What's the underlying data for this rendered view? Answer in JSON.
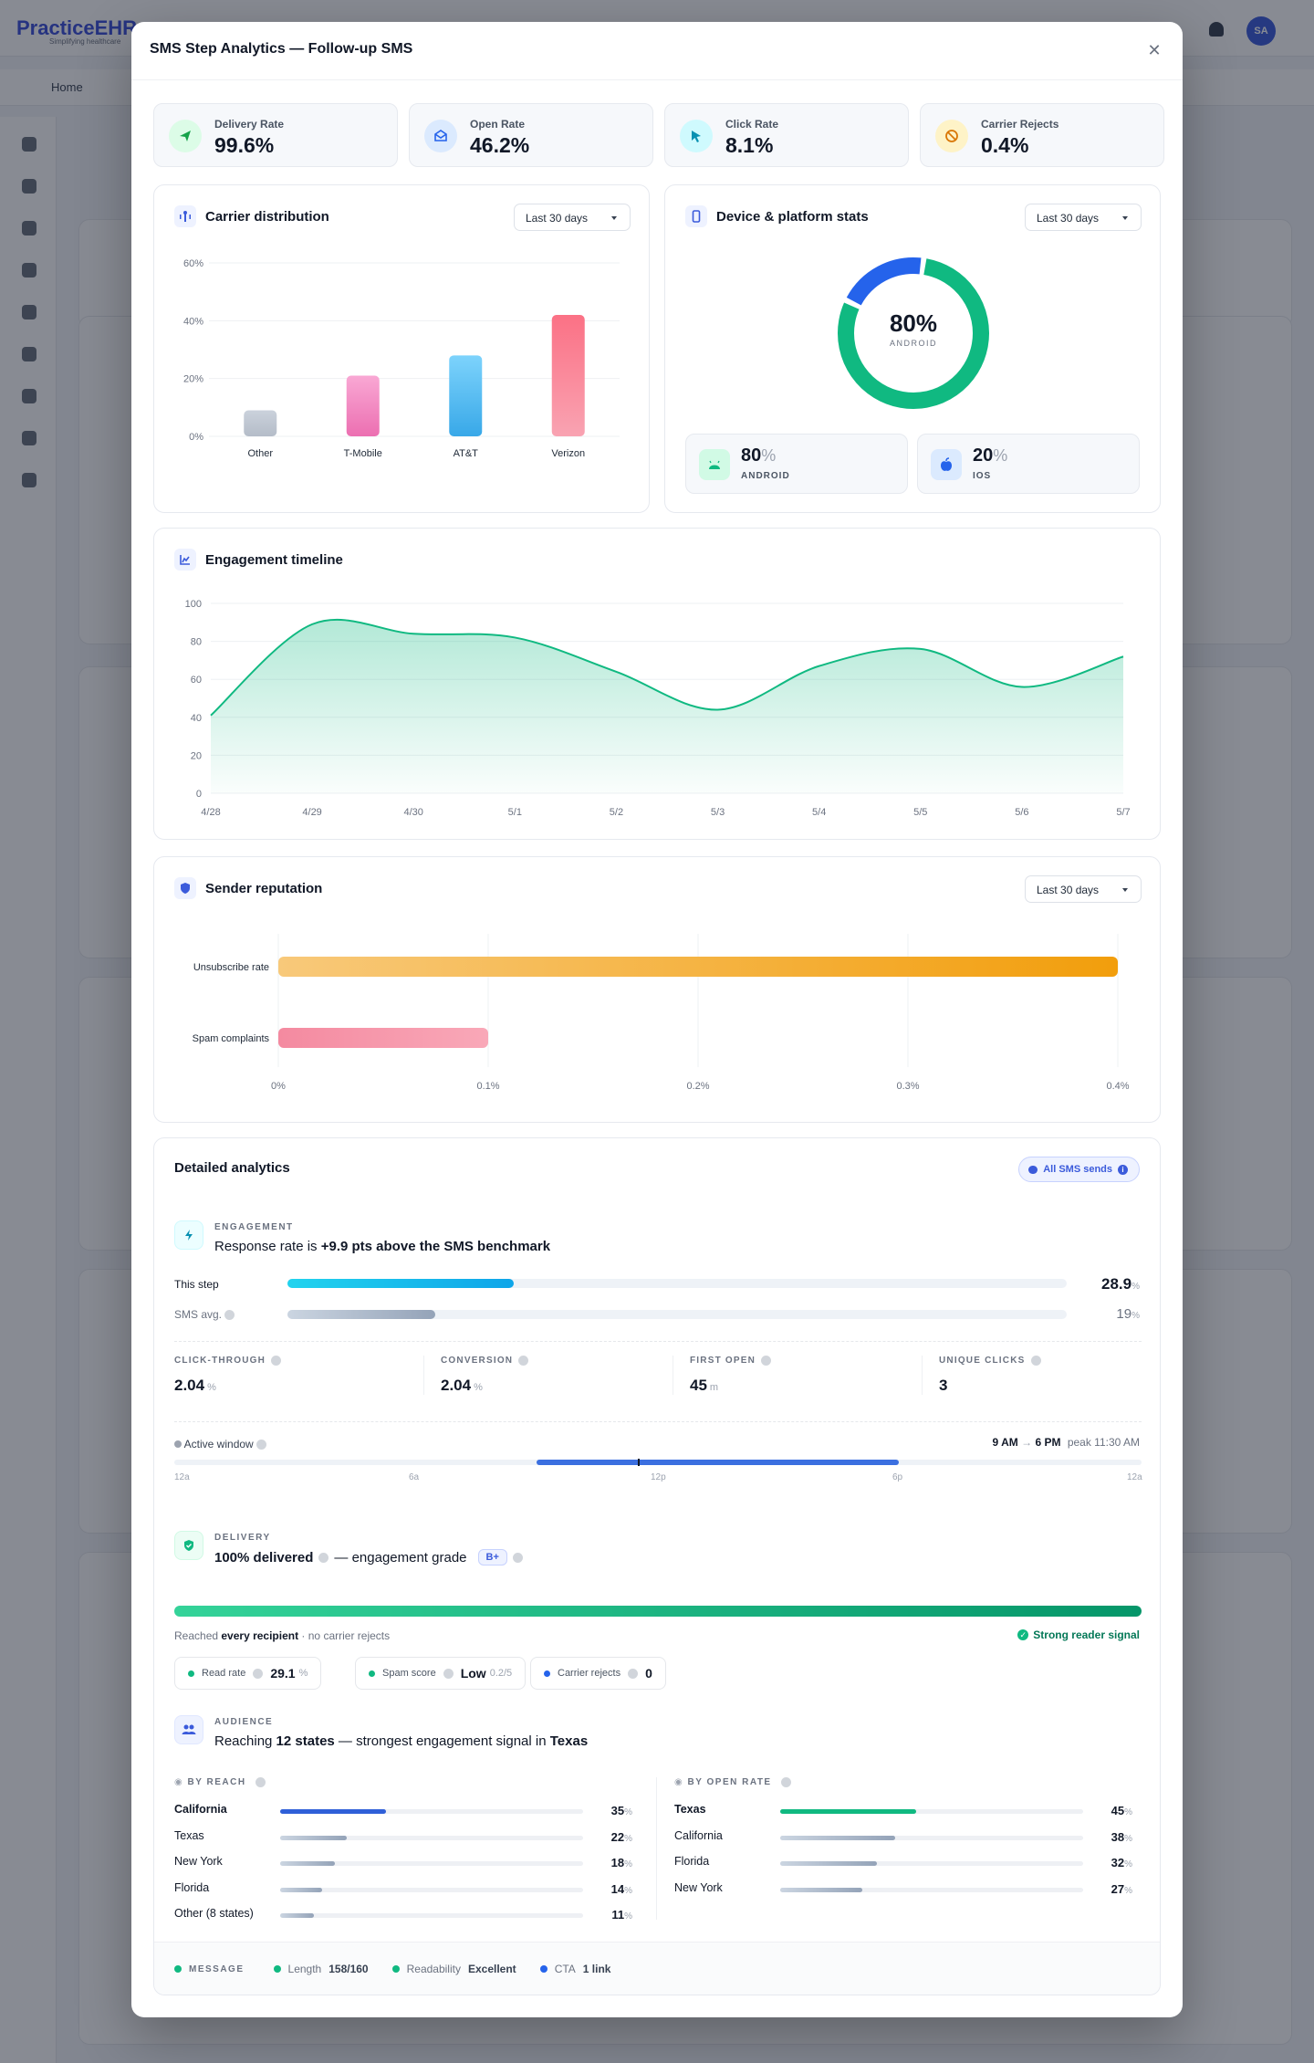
{
  "background": {
    "logo": "PracticeEHR",
    "logo_sub": "Simplifying healthcare",
    "avatar": "SA",
    "nav_home": "Home"
  },
  "modal": {
    "title": "SMS Step Analytics — Follow-up SMS"
  },
  "kpis": [
    {
      "label": "Delivery Rate",
      "value": "99.6%",
      "icon": "send-icon",
      "color": "#16a34a",
      "bg": "#dcfce7"
    },
    {
      "label": "Open Rate",
      "value": "46.2%",
      "icon": "envelope-open-icon",
      "color": "#2563eb",
      "bg": "#dbeafe"
    },
    {
      "label": "Click Rate",
      "value": "8.1%",
      "icon": "cursor-icon",
      "color": "#0891b2",
      "bg": "#cffafe"
    },
    {
      "label": "Carrier Rejects",
      "value": "0.4%",
      "icon": "ban-icon",
      "color": "#d97706",
      "bg": "#fef3c7"
    }
  ],
  "carrier": {
    "title": "Carrier distribution",
    "range": "Last 30 days",
    "chart_data": {
      "type": "bar",
      "categories": [
        "Other",
        "T-Mobile",
        "AT&T",
        "Verizon"
      ],
      "values": [
        9,
        21,
        28,
        42
      ],
      "ylim": [
        0,
        60
      ],
      "yticks": [
        "0%",
        "20%",
        "40%",
        "60%"
      ],
      "colors": [
        [
          "#cbd2dc",
          "#b4bcc8"
        ],
        [
          "#f9a8d4",
          "#ec6fb1"
        ],
        [
          "#7dd3fc",
          "#38a8e8"
        ],
        [
          "#fb7185",
          "#f9a3b2"
        ]
      ]
    }
  },
  "device": {
    "title": "Device & platform stats",
    "range": "Last 30 days",
    "center_value": "80%",
    "center_label": "ANDROID",
    "chart_data": {
      "type": "pie",
      "categories": [
        "Android",
        "iOS"
      ],
      "values": [
        80,
        20
      ],
      "colors": [
        "#10b981",
        "#2563eb"
      ]
    },
    "stats": [
      {
        "value": "80",
        "unit": "%",
        "label": "ANDROID",
        "icon": "android-icon"
      },
      {
        "value": "20",
        "unit": "%",
        "label": "IOS",
        "icon": "apple-icon"
      }
    ]
  },
  "timeline": {
    "title": "Engagement timeline",
    "chart_data": {
      "type": "area",
      "x": [
        "4/28",
        "4/29",
        "4/30",
        "5/1",
        "5/2",
        "5/3",
        "5/4",
        "5/5",
        "5/6",
        "5/7"
      ],
      "values": [
        41,
        89,
        84,
        82,
        64,
        44,
        67,
        76,
        56,
        72
      ],
      "ylim": [
        0,
        100
      ],
      "yticks": [
        "0",
        "20",
        "40",
        "60",
        "80",
        "100"
      ],
      "color": "#10b981"
    }
  },
  "reputation": {
    "title": "Sender reputation",
    "range": "Last 30 days",
    "chart_data": {
      "type": "bar",
      "orientation": "horizontal",
      "categories": [
        "Unsubscribe rate",
        "Spam complaints"
      ],
      "values": [
        0.4,
        0.1
      ],
      "xlim": [
        0,
        0.4
      ],
      "xticks": [
        "0%",
        "0.1%",
        "0.2%",
        "0.3%",
        "0.4%"
      ],
      "colors": [
        [
          "#f8c97a",
          "#f29e0c"
        ],
        [
          "#f48aa0",
          "#f9a8b8"
        ]
      ]
    }
  },
  "detailed": {
    "title": "Detailed analytics",
    "badge": "All SMS sends",
    "engagement": {
      "label": "ENGAGEMENT",
      "headline_pre": "Response rate is ",
      "headline_bold": "+9.9 pts above the SMS benchmark",
      "this_step_label": "This step",
      "this_step_value": "28.9",
      "this_step_fraction": 0.289,
      "avg_label": "SMS avg.",
      "avg_value": "19",
      "avg_fraction": 0.19,
      "unit": "%",
      "metrics": [
        {
          "label": "CLICK-THROUGH",
          "value": "2.04",
          "unit": "%"
        },
        {
          "label": "CONVERSION",
          "value": "2.04",
          "unit": "%"
        },
        {
          "label": "FIRST OPEN",
          "value": "45",
          "unit": "m"
        },
        {
          "label": "UNIQUE CLICKS",
          "value": "3",
          "unit": ""
        }
      ],
      "window_label": "Active window",
      "window_start": "9 AM",
      "window_arrow": "→",
      "window_end": "6 PM",
      "window_peak": "peak 11:30 AM",
      "window_ticks": [
        "12a",
        "6a",
        "12p",
        "6p",
        "12a"
      ]
    },
    "delivery": {
      "label": "DELIVERY",
      "headline_bold": "100% delivered",
      "headline_mid": " — engagement grade",
      "grade": "B+",
      "reached_pre": "Reached ",
      "reached_bold": "every recipient",
      "reached_post": " · no carrier rejects",
      "signal": "Strong reader signal",
      "pills": [
        {
          "label": "Read rate",
          "value": "29.1",
          "unit": "%",
          "color": "#10b981"
        },
        {
          "label": "Spam score",
          "value": "Low",
          "unit": "0.2/5",
          "color": "#10b981"
        },
        {
          "label": "Carrier rejects",
          "value": "0",
          "unit": "",
          "color": "#2563eb"
        }
      ]
    },
    "audience": {
      "label": "AUDIENCE",
      "headline_pre": "Reaching ",
      "headline_bold1": "12 states",
      "headline_mid": " — strongest engagement signal in ",
      "headline_bold2": "Texas",
      "reach_label": "BY REACH",
      "reach": [
        {
          "name": "California",
          "value": 35
        },
        {
          "name": "Texas",
          "value": 22
        },
        {
          "name": "New York",
          "value": 18
        },
        {
          "name": "Florida",
          "value": 14
        },
        {
          "name": "Other (8 states)",
          "value": 11
        }
      ],
      "open_label": "BY OPEN RATE",
      "open": [
        {
          "name": "Texas",
          "value": 45
        },
        {
          "name": "California",
          "value": 38
        },
        {
          "name": "Florida",
          "value": 32
        },
        {
          "name": "New York",
          "value": 27
        }
      ],
      "unit": "%"
    },
    "message": {
      "label": "MESSAGE",
      "length_label": "Length",
      "length_value": "158/160",
      "readability_label": "Readability",
      "readability_value": "Excellent",
      "cta_label": "CTA",
      "cta_value": "1 link"
    }
  }
}
